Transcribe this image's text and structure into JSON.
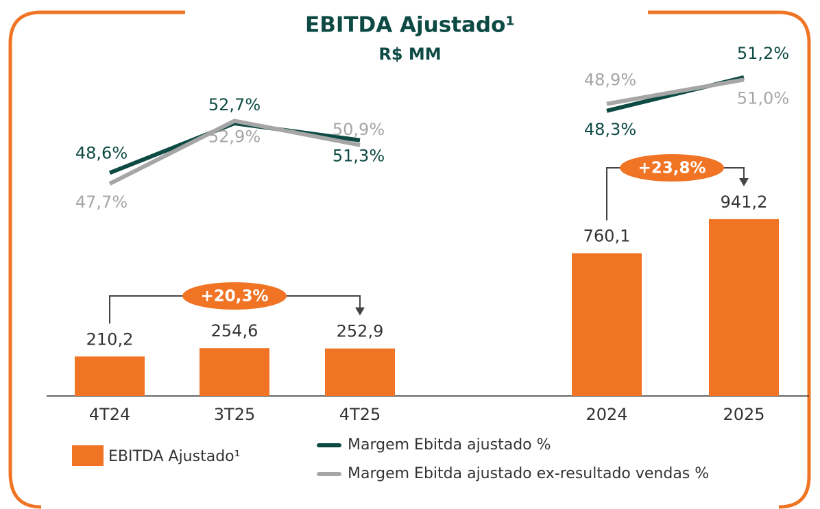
{
  "title": "EBITDA Ajustado¹",
  "subtitle": "R$ MM",
  "chart_data": [
    {
      "type": "bar",
      "categories": [
        "4T24",
        "3T25",
        "4T25"
      ],
      "ylim": [
        0,
        1200
      ],
      "y2lim": [
        45.9,
        54.4
      ],
      "annotation": "+20,3%",
      "series": [
        {
          "name": "EBITDA Ajustado¹",
          "color": "#f07424",
          "values": [
            210.2,
            254.6,
            252.9
          ],
          "value_labels": [
            "210,2",
            "254,6",
            "252,9"
          ]
        },
        {
          "name": "Margem Ebitda ajustado %",
          "color": "#0d4a44",
          "axis": "y2",
          "values": [
            48.6,
            52.7,
            51.3
          ],
          "value_labels": [
            "48,6%",
            "52,7%",
            "51,3%"
          ]
        },
        {
          "name": "Margem Ebitda ajustado ex-resultado vendas %",
          "color": "#a6a6a6",
          "axis": "y2",
          "values": [
            47.7,
            52.9,
            50.9
          ],
          "value_labels": [
            "47,7%",
            "52,9%",
            "50,9%"
          ]
        }
      ]
    },
    {
      "type": "bar",
      "categories": [
        "2024",
        "2025"
      ],
      "ylim": [
        0,
        1200
      ],
      "y2lim": [
        40.1,
        49.0
      ],
      "annotation": "+23,8%",
      "series": [
        {
          "color": "#f07424",
          "values": [
            760.1,
            941.2
          ],
          "value_labels": [
            "760,1",
            "941,2"
          ]
        },
        {
          "color": "#0d4a44",
          "axis": "y2",
          "values": [
            48.3,
            51.2
          ],
          "value_labels": [
            "48,3%",
            "51,2%"
          ]
        },
        {
          "color": "#a6a6a6",
          "axis": "y2",
          "values": [
            48.9,
            51.0
          ],
          "value_labels": [
            "48,9%",
            "51,0%"
          ]
        }
      ]
    }
  ]
}
